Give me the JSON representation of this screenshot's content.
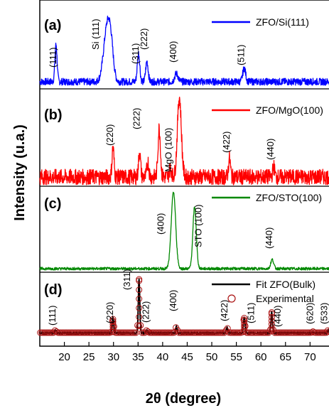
{
  "chart_data": {
    "type": "line",
    "xlabel": "2θ (degree)",
    "ylabel": "Intensity (u.a.)",
    "xlim": [
      15,
      74
    ],
    "xticks": [
      20,
      25,
      30,
      35,
      40,
      45,
      50,
      55,
      60,
      65,
      70
    ],
    "panels": [
      {
        "letter": "(a)",
        "color": "#0000ff",
        "series": [
          {
            "name": "ZFO/Si(111)",
            "peaks": [
              {
                "x": 18.3,
                "h": 0.55,
                "w": 0.22
              },
              {
                "x": 28.7,
                "h": 0.8,
                "w": 0.7
              },
              {
                "x": 29.5,
                "h": 0.35,
                "w": 0.5
              },
              {
                "x": 35.1,
                "h": 0.42,
                "w": 0.25
              },
              {
                "x": 36.8,
                "h": 0.3,
                "w": 0.25
              },
              {
                "x": 42.8,
                "h": 0.12,
                "w": 0.35
              },
              {
                "x": 56.6,
                "h": 0.2,
                "w": 0.3
              }
            ]
          }
        ],
        "labels": [
          {
            "text": "(111)",
            "x": 18.3
          },
          {
            "text": "Si (111)",
            "x": 27.0
          },
          {
            "text": "(311)",
            "x": 35.1
          },
          {
            "text": "(222)",
            "x": 36.8
          },
          {
            "text": "(400)",
            "x": 42.8
          },
          {
            "text": "(511)",
            "x": 56.6
          }
        ]
      },
      {
        "letter": "(b)",
        "color": "#ff0000",
        "series": [
          {
            "name": "ZFO/MgO(100)",
            "peaks": [
              {
                "x": 29.9,
                "h": 0.35,
                "w": 0.2
              },
              {
                "x": 35.3,
                "h": 0.3,
                "w": 0.2
              },
              {
                "x": 37.0,
                "h": 0.18,
                "w": 0.2
              },
              {
                "x": 39.3,
                "h": 0.58,
                "w": 0.25
              },
              {
                "x": 41.6,
                "h": 0.1,
                "w": 0.25
              },
              {
                "x": 43.4,
                "h": 0.95,
                "w": 0.4
              },
              {
                "x": 53.6,
                "h": 0.22,
                "w": 0.2
              },
              {
                "x": 62.6,
                "h": 0.12,
                "w": 0.2
              }
            ]
          }
        ],
        "labels": [
          {
            "text": "(220)",
            "x": 29.9
          },
          {
            "text": "(222)",
            "x": 35.3
          },
          {
            "text": "MgO (100)",
            "x": 41.8
          },
          {
            "text": "(422)",
            "x": 53.6
          },
          {
            "text": "(440)",
            "x": 62.6
          }
        ]
      },
      {
        "letter": "(c)",
        "color": "#008800",
        "series": [
          {
            "name": "ZFO/STO(100)",
            "peaks": [
              {
                "x": 42.2,
                "h": 1.0,
                "w": 0.45
              },
              {
                "x": 46.5,
                "h": 0.8,
                "w": 0.35
              },
              {
                "x": 62.3,
                "h": 0.12,
                "w": 0.3
              }
            ]
          }
        ],
        "labels": [
          {
            "text": "(400)",
            "x": 40.2
          },
          {
            "text": "STO (100)",
            "x": 47.9
          },
          {
            "text": "(440)",
            "x": 62.3
          }
        ]
      },
      {
        "letter": "(d)",
        "color": "#000000",
        "series": [
          {
            "name": "Fit ZFO(Bulk)",
            "peaks": [
              {
                "x": 18.2,
                "h": 0.05,
                "w": 0.15
              },
              {
                "x": 29.9,
                "h": 0.28,
                "w": 0.15
              },
              {
                "x": 35.2,
                "h": 1.0,
                "w": 0.15
              },
              {
                "x": 36.8,
                "h": 0.05,
                "w": 0.15
              },
              {
                "x": 42.8,
                "h": 0.12,
                "w": 0.15
              },
              {
                "x": 53.1,
                "h": 0.1,
                "w": 0.15
              },
              {
                "x": 56.6,
                "h": 0.3,
                "w": 0.15
              },
              {
                "x": 62.2,
                "h": 0.38,
                "w": 0.15
              },
              {
                "x": 70.6,
                "h": 0.02,
                "w": 0.15
              },
              {
                "x": 73.7,
                "h": 0.05,
                "w": 0.15
              }
            ]
          },
          {
            "name": "Experimental",
            "marker": "circle",
            "color": "#aa1111"
          }
        ],
        "labels": [
          {
            "text": "(111)",
            "x": 18.2
          },
          {
            "text": "(220)",
            "x": 29.9
          },
          {
            "text": "(311)",
            "x": 33.4
          },
          {
            "text": "(222)",
            "x": 37.2
          },
          {
            "text": "(400)",
            "x": 42.8
          },
          {
            "text": "(422)",
            "x": 53.2
          },
          {
            "text": "(511)",
            "x": 58.6
          },
          {
            "text": "(440)",
            "x": 64.0
          },
          {
            "text": "(620)",
            "x": 70.6
          },
          {
            "text": "(533)",
            "x": 73.5
          }
        ]
      }
    ]
  }
}
